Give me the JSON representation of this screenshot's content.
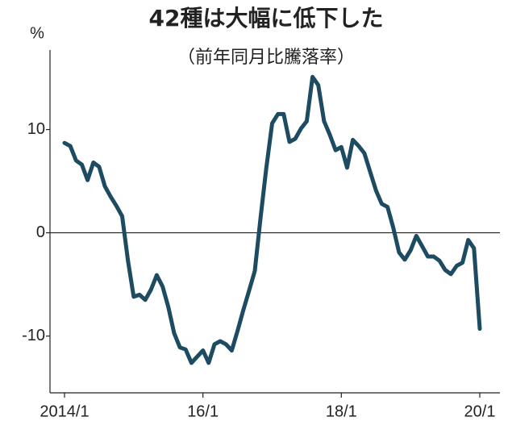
{
  "chart_data": {
    "type": "line",
    "title": "42種は大幅に低下した",
    "subtitle": "（前年同月比騰落率）",
    "y_label": "%",
    "categories": [
      "2014/1",
      null,
      null,
      null,
      null,
      null,
      null,
      null,
      null,
      null,
      null,
      null,
      null,
      null,
      null,
      null,
      null,
      null,
      null,
      null,
      null,
      null,
      null,
      null,
      "16/1",
      null,
      null,
      null,
      null,
      null,
      null,
      null,
      null,
      null,
      null,
      null,
      null,
      null,
      null,
      null,
      null,
      null,
      null,
      null,
      null,
      null,
      null,
      null,
      "18/1",
      null,
      null,
      null,
      null,
      null,
      null,
      null,
      null,
      null,
      null,
      null,
      null,
      null,
      null,
      null,
      null,
      null,
      null,
      null,
      null,
      null,
      null,
      null,
      "20/1"
    ],
    "values": [
      8.7,
      8.4,
      7.0,
      6.6,
      5.1,
      6.8,
      6.4,
      4.5,
      3.5,
      2.6,
      1.6,
      -2.7,
      -6.2,
      -6.0,
      -6.5,
      -5.5,
      -4.1,
      -5.2,
      -7.2,
      -9.7,
      -11.1,
      -11.3,
      -12.6,
      -12.0,
      -11.4,
      -12.6,
      -10.8,
      -10.5,
      -10.8,
      -11.4,
      -9.5,
      -7.5,
      -5.6,
      -3.7,
      1.5,
      6.3,
      10.6,
      11.5,
      11.5,
      8.8,
      9.1,
      10.1,
      10.8,
      15.1,
      14.3,
      10.8,
      9.5,
      8.0,
      8.3,
      6.3,
      9.0,
      8.4,
      7.7,
      5.9,
      4.1,
      2.8,
      2.5,
      0.5,
      -1.9,
      -2.6,
      -1.7,
      -0.3,
      -1.3,
      -2.3,
      -2.3,
      -2.7,
      -3.6,
      -4.0,
      -3.2,
      -2.9,
      -0.7,
      -1.5,
      -9.3
    ],
    "color": "#1d4b61",
    "ylim": [
      -15.5,
      17.7
    ],
    "yticks": [
      10,
      0,
      -10
    ],
    "zero_line": true
  }
}
